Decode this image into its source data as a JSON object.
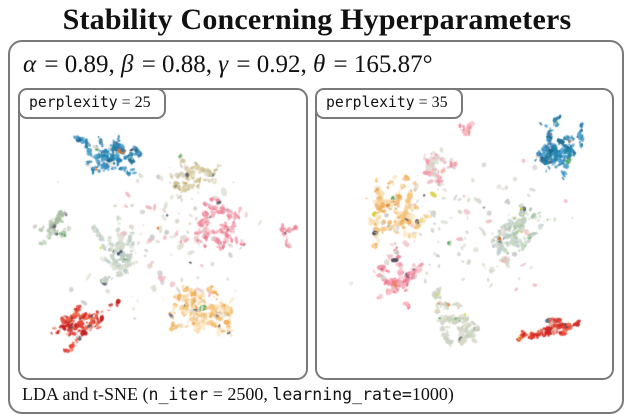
{
  "title": "Stability Concerning Hyperparameters",
  "header": {
    "params_text": "α = 0.89, β = 0.88, γ = 0.92, θ = 165.87°",
    "params_parts": [
      {
        "text": "α",
        "style": "italic"
      },
      {
        "text": " = 0.89, "
      },
      {
        "text": "β",
        "style": "italic"
      },
      {
        "text": " = 0.88, "
      },
      {
        "text": "γ",
        "style": "italic"
      },
      {
        "text": " = 0.92, "
      },
      {
        "text": "θ",
        "style": "italic"
      },
      {
        "text": " = 165.87°"
      }
    ]
  },
  "footer": {
    "caption_text": "LDA and t-SNE (n_iter = 2500, learning_rate=1000)",
    "caption_parts": [
      {
        "text": "LDA and t-SNE ("
      },
      {
        "text": "n_iter",
        "style": "mono"
      },
      {
        "text": " = 2500, "
      },
      {
        "text": "learning_rate=",
        "style": "mono"
      },
      {
        "text": "1000)"
      }
    ]
  },
  "colors": {
    "frame_border": "#7a7a7a",
    "background": "#ffffff",
    "noise_grey": [
      "#d0cfc9",
      "#dedad2",
      "#c4c4c4",
      "#e8e4da"
    ],
    "noise_dark": [
      "#3c4a66",
      "#52525a"
    ],
    "noise_bright": [
      "#d9cf3e",
      "#53a85c",
      "#e4762f"
    ]
  },
  "chart_data": [
    {
      "type": "scatter",
      "title": "perplexity = 25",
      "title_parts": [
        {
          "text": "perplexity",
          "style": "mono"
        },
        {
          "text": " = 25"
        }
      ],
      "seed": 20257,
      "axes": "hidden",
      "clusters": [
        {
          "name": "blue-topic",
          "colors": [
            "#2b7cb3",
            "#1f85a8",
            "#3f93c6",
            "#1b6a8f",
            "#57a7cf"
          ],
          "cx": 0.33,
          "cy": 0.24,
          "sx": 0.15,
          "sy": 0.11,
          "count": 240
        },
        {
          "name": "sage-topic-left",
          "colors": [
            "#b9cbb2",
            "#ccd9c4",
            "#a6bda0"
          ],
          "cx": 0.13,
          "cy": 0.46,
          "sx": 0.06,
          "sy": 0.07,
          "count": 90
        },
        {
          "name": "pale-green-topic",
          "colors": [
            "#cfdacb",
            "#dee5d7",
            "#c2cfc2",
            "#b9cdc6"
          ],
          "cx": 0.33,
          "cy": 0.56,
          "sx": 0.12,
          "sy": 0.12,
          "count": 200
        },
        {
          "name": "tan-topic",
          "colors": [
            "#d6cca2",
            "#e2dab9",
            "#cabe8f"
          ],
          "cx": 0.6,
          "cy": 0.3,
          "sx": 0.12,
          "sy": 0.1,
          "count": 130
        },
        {
          "name": "pink-topic",
          "colors": [
            "#f08ba0",
            "#f5aeba",
            "#ec7189",
            "#f9c7cd"
          ],
          "cx": 0.7,
          "cy": 0.47,
          "sx": 0.12,
          "sy": 0.13,
          "count": 190
        },
        {
          "name": "pink-arc-right",
          "colors": [
            "#f4a0b0",
            "#ee7f95"
          ],
          "cx": 0.94,
          "cy": 0.5,
          "sx": 0.025,
          "sy": 0.05,
          "count": 30
        },
        {
          "name": "orange-topic",
          "colors": [
            "#f5c47e",
            "#f9dba8",
            "#eeab57",
            "#fbe9ca"
          ],
          "cx": 0.63,
          "cy": 0.77,
          "sx": 0.14,
          "sy": 0.11,
          "count": 290
        },
        {
          "name": "red-topic",
          "colors": [
            "#dc2622",
            "#e8483a",
            "#c01f1f",
            "#ef6a4a"
          ],
          "cx": 0.22,
          "cy": 0.82,
          "sx": 0.1,
          "sy": 0.07,
          "count": 170,
          "ang": -0.45
        },
        {
          "name": "outlier-points",
          "colors": [
            "#d8d4cb",
            "#e3ded3",
            "#cccccc",
            "#f0b8c0",
            "#d6e0cf"
          ],
          "cx": 0.5,
          "cy": 0.52,
          "sx": 0.4,
          "sy": 0.36,
          "count": 120,
          "single": true
        }
      ]
    },
    {
      "type": "scatter",
      "title": "perplexity = 35",
      "title_parts": [
        {
          "text": "perplexity",
          "style": "mono"
        },
        {
          "text": " = 35"
        }
      ],
      "seed": 30359,
      "axes": "hidden",
      "clusters": [
        {
          "name": "blue-topic",
          "colors": [
            "#2b7cb3",
            "#1f85a8",
            "#3f93c6",
            "#1b6a8f",
            "#57a7cf"
          ],
          "cx": 0.81,
          "cy": 0.2,
          "sx": 0.13,
          "sy": 0.12,
          "count": 250
        },
        {
          "name": "pink-top",
          "colors": [
            "#f5aeba",
            "#f08ba0",
            "#f9c7cd"
          ],
          "cx": 0.5,
          "cy": 0.12,
          "sx": 0.05,
          "sy": 0.05,
          "count": 45
        },
        {
          "name": "orange-topic",
          "colors": [
            "#f5c47e",
            "#f9dba8",
            "#eeab57",
            "#fbe9ca"
          ],
          "cx": 0.26,
          "cy": 0.43,
          "sx": 0.14,
          "sy": 0.12,
          "count": 300
        },
        {
          "name": "pink-left",
          "colors": [
            "#f08ba0",
            "#f5aeba",
            "#ec7189",
            "#f9c7cd"
          ],
          "cx": 0.27,
          "cy": 0.66,
          "sx": 0.09,
          "sy": 0.1,
          "count": 150
        },
        {
          "name": "pink-mid",
          "colors": [
            "#f5aeba",
            "#f08ba0",
            "#ddd8cf"
          ],
          "cx": 0.42,
          "cy": 0.27,
          "sx": 0.07,
          "sy": 0.09,
          "count": 80
        },
        {
          "name": "sage-topic-right",
          "colors": [
            "#aac5ab",
            "#c4d6c0",
            "#cfdacb",
            "#bfcfd2"
          ],
          "cx": 0.68,
          "cy": 0.5,
          "sx": 0.12,
          "sy": 0.12,
          "count": 200
        },
        {
          "name": "grey-green-bottom",
          "colors": [
            "#cfd6c4",
            "#dcd8c4",
            "#c8d2c0"
          ],
          "cx": 0.46,
          "cy": 0.8,
          "sx": 0.11,
          "sy": 0.09,
          "count": 150
        },
        {
          "name": "red-topic",
          "colors": [
            "#dc2622",
            "#e8483a",
            "#c01f1f",
            "#ef6a4a"
          ],
          "cx": 0.78,
          "cy": 0.84,
          "sx": 0.1,
          "sy": 0.06,
          "count": 160,
          "ang": -0.55
        },
        {
          "name": "outlier-points",
          "colors": [
            "#d8d4cb",
            "#e3ded3",
            "#cccccc",
            "#f0b8c0",
            "#d6e0cf"
          ],
          "cx": 0.5,
          "cy": 0.5,
          "sx": 0.4,
          "sy": 0.37,
          "count": 120,
          "single": true
        }
      ]
    }
  ]
}
